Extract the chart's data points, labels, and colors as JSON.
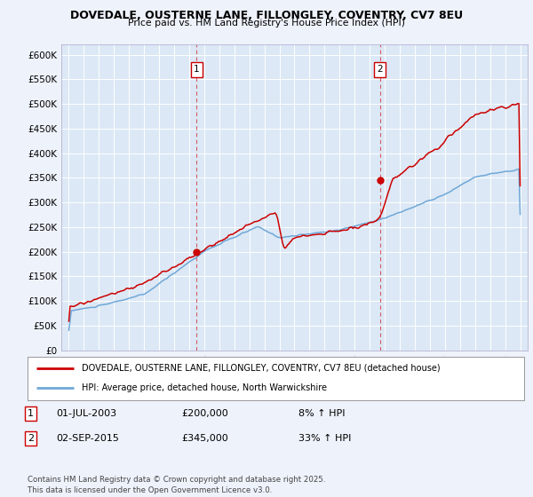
{
  "title1": "DOVEDALE, OUSTERNE LANE, FILLONGLEY, COVENTRY, CV7 8EU",
  "title2": "Price paid vs. HM Land Registry's House Price Index (HPI)",
  "ylabel_ticks": [
    "£0",
    "£50K",
    "£100K",
    "£150K",
    "£200K",
    "£250K",
    "£300K",
    "£350K",
    "£400K",
    "£450K",
    "£500K",
    "£550K",
    "£600K"
  ],
  "ytick_values": [
    0,
    50000,
    100000,
    150000,
    200000,
    250000,
    300000,
    350000,
    400000,
    450000,
    500000,
    550000,
    600000
  ],
  "xlim": [
    1994.5,
    2025.5
  ],
  "ylim": [
    0,
    620000
  ],
  "background_color": "#eef2fb",
  "plot_bg_color": "#dce8f5",
  "grid_color": "#ffffff",
  "hpi_color": "#6fa8d8",
  "price_color": "#cc0000",
  "sale1_x": 2003.5,
  "sale1_y": 200000,
  "sale2_x": 2015.67,
  "sale2_y": 345000,
  "legend_label1": "DOVEDALE, OUSTERNE LANE, FILLONGLEY, COVENTRY, CV7 8EU (detached house)",
  "legend_label2": "HPI: Average price, detached house, North Warwickshire",
  "note1_num": "1",
  "note1_date": "01-JUL-2003",
  "note1_price": "£200,000",
  "note1_hpi": "8% ↑ HPI",
  "note2_num": "2",
  "note2_date": "02-SEP-2015",
  "note2_price": "£345,000",
  "note2_hpi": "33% ↑ HPI",
  "footer": "Contains HM Land Registry data © Crown copyright and database right 2025.\nThis data is licensed under the Open Government Licence v3.0."
}
